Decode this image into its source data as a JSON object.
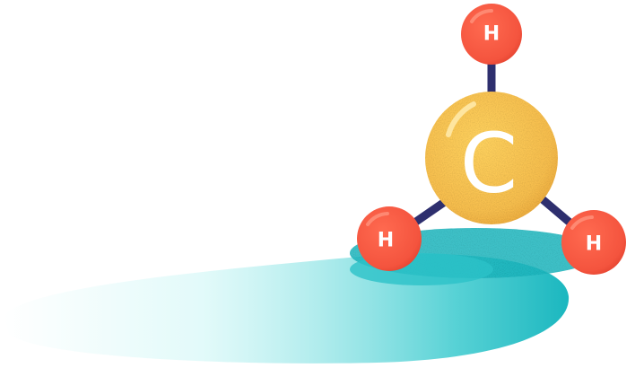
{
  "molecule": {
    "central_atom": {
      "label": "C",
      "color": "#F7BE4D",
      "highlight_color": "#FFF6D8"
    },
    "outer_atoms": [
      {
        "label": "H",
        "color": "#F4543E"
      },
      {
        "label": "H",
        "color": "#F4543E"
      },
      {
        "label": "H",
        "color": "#F4543E"
      }
    ],
    "bond_color": "#2E2F6E",
    "label_color": "#FFFFFF"
  },
  "shadow": {
    "color_dark": "#1BB7BF",
    "color_light": "#BFF4F3"
  }
}
